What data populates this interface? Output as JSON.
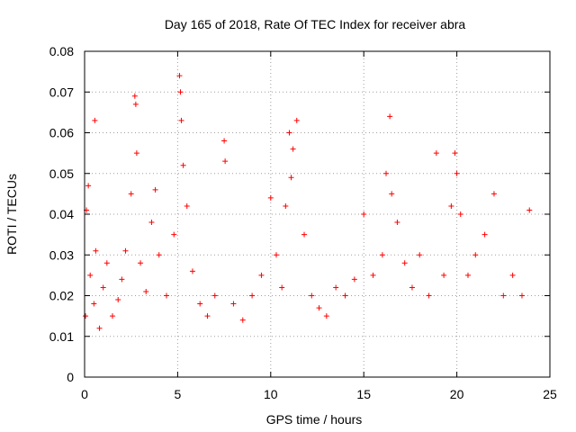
{
  "chart_data": {
    "type": "scatter",
    "title": "Day 165 of 2018, Rate Of TEC Index for receiver abra",
    "xlabel": "GPS time / hours",
    "ylabel": "ROTI / TECUs",
    "xlim": [
      0,
      25
    ],
    "ylim": [
      0,
      0.08
    ],
    "x_ticks": [
      "0",
      "5",
      "10",
      "15",
      "20",
      "25"
    ],
    "y_ticks": [
      "0",
      "0.01",
      "0.02",
      "0.03",
      "0.04",
      "0.05",
      "0.06",
      "0.07",
      "0.08"
    ],
    "grid": true,
    "marker": "plus",
    "color": "#ff0000",
    "series": [
      {
        "x": [
          0.05,
          0.1,
          0.2,
          0.3,
          0.5,
          0.55,
          0.6,
          0.8,
          1.0,
          1.2,
          1.5,
          1.8,
          2.0,
          2.2,
          2.5,
          2.7,
          2.75,
          2.8,
          3.0,
          3.3,
          3.6,
          3.8,
          4.0,
          4.4,
          4.8,
          5.1,
          5.15,
          5.2,
          5.3,
          5.5,
          5.8,
          6.2,
          6.6,
          7.0,
          7.5,
          7.55,
          8.0,
          8.5,
          9.0,
          9.5,
          10.0,
          10.3,
          10.6,
          10.8,
          11.0,
          11.1,
          11.2,
          11.4,
          11.8,
          12.2,
          12.6,
          13.0,
          13.5,
          14.0,
          14.5,
          15.0,
          15.5,
          16.0,
          16.2,
          16.4,
          16.5,
          16.8,
          17.2,
          17.6,
          18.0,
          18.5,
          18.9,
          19.3,
          19.7,
          19.9,
          20.0,
          20.2,
          20.6,
          21.0,
          21.5,
          22.0,
          22.5,
          23.0,
          23.5,
          23.9
        ],
        "y": [
          0.015,
          0.041,
          0.047,
          0.025,
          0.018,
          0.063,
          0.031,
          0.012,
          0.022,
          0.028,
          0.015,
          0.019,
          0.024,
          0.031,
          0.045,
          0.069,
          0.067,
          0.055,
          0.028,
          0.021,
          0.038,
          0.046,
          0.03,
          0.02,
          0.035,
          0.074,
          0.07,
          0.063,
          0.052,
          0.042,
          0.026,
          0.018,
          0.015,
          0.02,
          0.058,
          0.053,
          0.018,
          0.014,
          0.02,
          0.025,
          0.044,
          0.03,
          0.022,
          0.042,
          0.06,
          0.049,
          0.056,
          0.063,
          0.035,
          0.02,
          0.017,
          0.015,
          0.022,
          0.02,
          0.024,
          0.04,
          0.025,
          0.03,
          0.05,
          0.064,
          0.045,
          0.038,
          0.028,
          0.022,
          0.03,
          0.02,
          0.055,
          0.025,
          0.042,
          0.055,
          0.05,
          0.04,
          0.025,
          0.03,
          0.035,
          0.045,
          0.02,
          0.025,
          0.02,
          0.041
        ]
      }
    ]
  }
}
